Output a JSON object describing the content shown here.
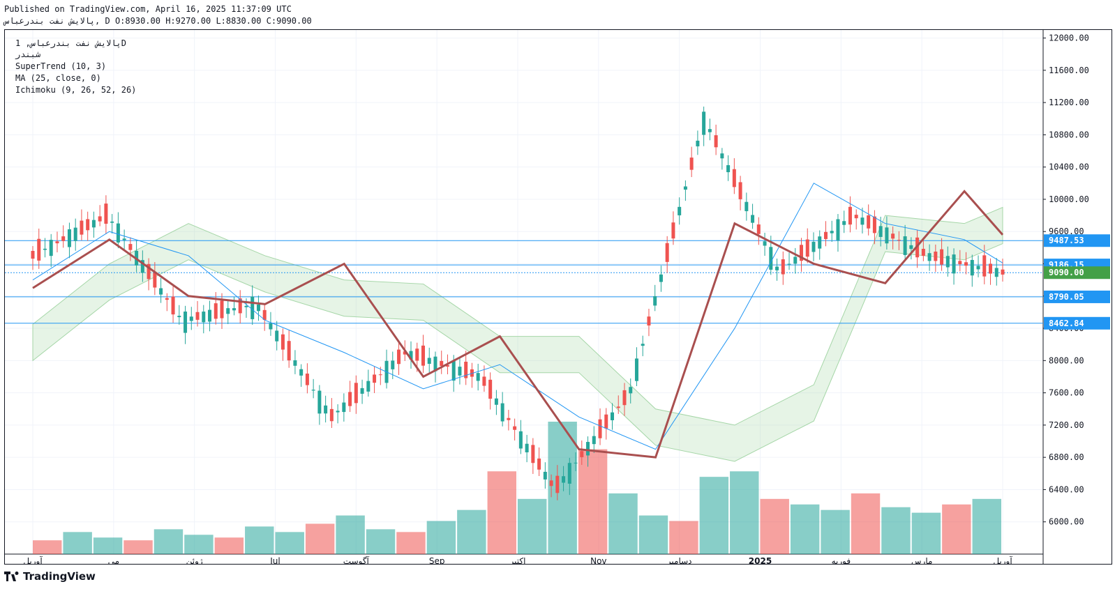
{
  "header": {
    "published": "Published on TradingView.com, April 16, 2025 11:37:09 UTC",
    "ohlc_line": "پالایش نفت بندرعباس, D O:8930.00 H:9270.00 L:8830.00 C:9090.00"
  },
  "legend": {
    "symbol": "پالایش نفت بندرعباس, 1D",
    "symbol_code": "شبندر",
    "indicators": [
      "SuperTrend (10, 3)",
      "MA (25, close, 0)",
      "Ichimoku (9, 26, 52, 26)"
    ]
  },
  "footer": {
    "brand": "TradingView"
  },
  "colors": {
    "up": "#26a69a",
    "down": "#ef5350",
    "supertrend_up": "#43a047",
    "supertrend_down": "#a94f4f",
    "ma": "#2196f3",
    "cloud_bull": "#a5d6a7",
    "cloud_bear": "#f8bbbb",
    "hline": "#2196f3"
  },
  "chart_data": {
    "type": "candlestick",
    "title": "پالایش نفت بندرعباس, 1D",
    "y_axis": {
      "range": [
        5600,
        12100
      ],
      "ticks": [
        6000,
        6400,
        6800,
        7200,
        7600,
        8000,
        8400,
        8800,
        9200,
        9600,
        10000,
        10400,
        10800,
        11200,
        11600,
        12000
      ],
      "position": "right"
    },
    "x_axis": {
      "labels": [
        "آوریل",
        "می",
        "ژوئن",
        "Jul",
        "آگوست",
        "Sep",
        "اکتبر",
        "Nov",
        "دسامبر",
        "2025",
        "فوریه",
        "مارس",
        "آوریل"
      ]
    },
    "horizontal_levels": [
      9487.53,
      9186.15,
      9090.0,
      8790.05,
      8462.84
    ],
    "price_label_y": [
      9487.53,
      9186.15,
      9090.0,
      8790.05,
      8462.84
    ],
    "ohlc": {
      "open": 8930.0,
      "high": 9270.0,
      "low": 8830.0,
      "close": 9090.0,
      "x": [
        "2024-04-01",
        "2024-05-01",
        "2024-06-01",
        "2024-07-01",
        "2024-08-01",
        "2024-09-01",
        "2024-10-01",
        "2024-11-01",
        "2024-12-01",
        "2025-01-01",
        "2025-02-01",
        "2025-03-01",
        "2025-04-01",
        "2025-04-16"
      ],
      "close_series": [
        9300,
        9800,
        8500,
        8700,
        7300,
        8100,
        7800,
        6400,
        7600,
        11000,
        9100,
        9800,
        9300,
        9090
      ]
    },
    "series": [
      {
        "name": "SuperTrend (10, 3)",
        "type": "line",
        "x": [
          "2024-04-01",
          "2024-05-01",
          "2024-06-01",
          "2024-07-01",
          "2024-08-01",
          "2024-09-01",
          "2024-10-01",
          "2024-11-01",
          "2024-12-01",
          "2025-01-01",
          "2025-02-01",
          "2025-03-01",
          "2025-04-01",
          "2025-04-16"
        ],
        "values": [
          8900,
          9500,
          8800,
          8700,
          9200,
          7800,
          8300,
          6900,
          6800,
          9700,
          9200,
          8960,
          10100,
          9560
        ]
      },
      {
        "name": "MA (25, close, 0)",
        "type": "line",
        "x": [
          "2024-04-01",
          "2024-05-01",
          "2024-06-01",
          "2024-07-01",
          "2024-08-01",
          "2024-09-01",
          "2024-10-01",
          "2024-11-01",
          "2024-12-01",
          "2025-01-01",
          "2025-02-01",
          "2025-03-01",
          "2025-04-01",
          "2025-04-16"
        ],
        "values": [
          9000,
          9600,
          9300,
          8500,
          8100,
          7650,
          7950,
          7300,
          6900,
          8400,
          10200,
          9700,
          9500,
          9210
        ]
      },
      {
        "name": "Ichimoku (9, 26, 52, 26)",
        "type": "area",
        "x": [
          "2024-04-01",
          "2024-05-01",
          "2024-06-01",
          "2024-07-01",
          "2024-08-01",
          "2024-09-01",
          "2024-10-01",
          "2024-11-01",
          "2024-12-01",
          "2025-01-01",
          "2025-02-01",
          "2025-03-01",
          "2025-04-01",
          "2025-04-16"
        ],
        "values": [
          8450,
          9200,
          9700,
          9300,
          9000,
          8950,
          8300,
          8300,
          7400,
          7200,
          7700,
          9800,
          9700,
          9900
        ]
      }
    ],
    "volume": [
      5,
      8,
      6,
      5,
      9,
      7,
      6,
      10,
      8,
      11,
      14,
      9,
      8,
      12,
      16,
      30,
      20,
      48,
      38,
      22,
      14,
      12,
      28,
      30,
      20,
      18,
      16,
      22,
      17,
      15,
      18,
      20
    ],
    "grid": true,
    "legend_position": "top-left"
  }
}
